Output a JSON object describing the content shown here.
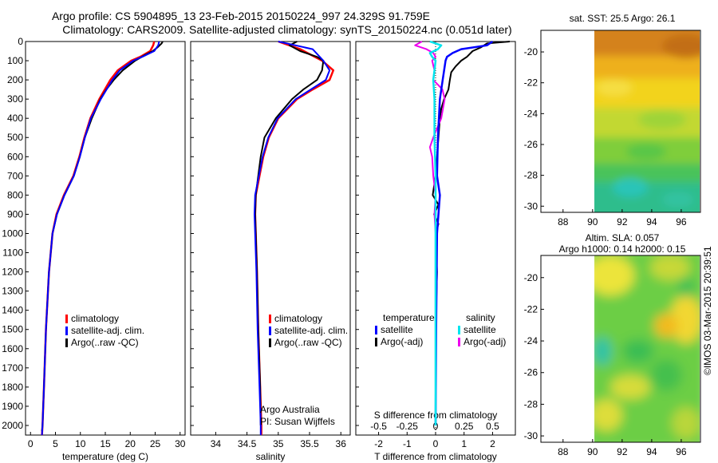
{
  "title_line1": "Argo profile: CS 5904895_13 23-Feb-2015 20150224_997 24.329S 91.759E",
  "title_line2": "Climatology: CARS2009. Satellite-adjusted climatology: synTS_20150224.nc (0.051d later)",
  "credit": "©IMOS 03-Mar-2015 20:39:51",
  "colors": {
    "climatology": "#ff0000",
    "satellite": "#0000ff",
    "argo": "#000000",
    "sal_sat": "#00e5ee",
    "sal_argo": "#ee00ee"
  },
  "chart_data": [
    {
      "type": "line",
      "id": "temperature",
      "xlabel": "temperature (deg C)",
      "ylabel": "depth",
      "xlim": [
        -1,
        31
      ],
      "ylim": [
        2050,
        0
      ],
      "xticks": [
        "0",
        "5",
        "10",
        "15",
        "20",
        "25",
        "30"
      ],
      "yticks": [
        "0",
        "100",
        "200",
        "300",
        "400",
        "500",
        "600",
        "700",
        "800",
        "900",
        "1000",
        "1100",
        "1200",
        "1300",
        "1400",
        "1500",
        "1600",
        "1700",
        "1800",
        "1900",
        "2000"
      ],
      "legend": [
        "climatology",
        "satellite-adj. clim.",
        "Argo(..raw -QC)"
      ],
      "series": [
        {
          "name": "climatology",
          "depth": [
            0,
            20,
            50,
            80,
            100,
            150,
            200,
            300,
            400,
            500,
            600,
            700,
            800,
            900,
            1000,
            1200,
            1500,
            1800,
            2000,
            2050
          ],
          "values": [
            24.8,
            24.6,
            24.0,
            22.0,
            20.2,
            17.5,
            16.0,
            13.8,
            12.0,
            10.8,
            9.8,
            8.6,
            6.7,
            5.2,
            4.4,
            3.7,
            3.1,
            2.7,
            2.4,
            2.3
          ]
        },
        {
          "name": "satellite-adj. clim.",
          "depth": [
            0,
            20,
            50,
            80,
            100,
            150,
            200,
            300,
            400,
            500,
            600,
            700,
            800,
            900,
            1000,
            1200,
            1500,
            1800,
            2000,
            2050
          ],
          "values": [
            25.8,
            25.6,
            24.8,
            22.4,
            20.6,
            17.9,
            16.4,
            14.1,
            12.1,
            10.9,
            9.9,
            8.7,
            6.8,
            5.3,
            4.4,
            3.7,
            3.1,
            2.7,
            2.4,
            2.3
          ]
        },
        {
          "name": "Argo(..raw -QC)",
          "depth": [
            0,
            10,
            30,
            50,
            70,
            100,
            150,
            200,
            250,
            300,
            400,
            500,
            600,
            700,
            800,
            900,
            1000,
            1200,
            1500,
            1800,
            2000,
            2030
          ],
          "values": [
            26.5,
            26.3,
            25.5,
            24.5,
            23.0,
            21.0,
            18.5,
            16.7,
            15.2,
            14.0,
            12.3,
            10.9,
            9.9,
            8.7,
            6.8,
            5.3,
            4.4,
            3.7,
            3.1,
            2.7,
            2.4,
            2.3
          ]
        }
      ]
    },
    {
      "type": "line",
      "id": "salinity",
      "xlabel": "salinity",
      "ylabel": "depth",
      "xlim": [
        33.6,
        36.15
      ],
      "ylim": [
        2050,
        0
      ],
      "xticks": [
        "34",
        "34.5",
        "35",
        "35.5",
        "36"
      ],
      "legend": [
        "climatology",
        "satellite-adj. clim.",
        "Argo(..raw -QC)"
      ],
      "annotation": [
        "Argo Australia",
        "PI: Susan Wijffels"
      ],
      "series": [
        {
          "name": "climatology",
          "depth": [
            0,
            40,
            100,
            150,
            200,
            250,
            300,
            400,
            500,
            600,
            700,
            800,
            900,
            1000,
            1200,
            1500,
            1800,
            2000,
            2050
          ],
          "values": [
            35.0,
            35.35,
            35.7,
            35.88,
            35.82,
            35.55,
            35.3,
            35.0,
            34.85,
            34.76,
            34.7,
            34.64,
            34.63,
            34.64,
            34.66,
            34.68,
            34.71,
            34.73,
            34.73
          ]
        },
        {
          "name": "satellite-adj. clim.",
          "depth": [
            0,
            40,
            100,
            150,
            200,
            250,
            300,
            400,
            500,
            600,
            700,
            800,
            900,
            1000,
            1200,
            1500,
            1800,
            2000,
            2050
          ],
          "values": [
            35.0,
            35.55,
            35.72,
            35.82,
            35.76,
            35.52,
            35.28,
            34.99,
            34.84,
            34.75,
            34.69,
            34.63,
            34.62,
            34.63,
            34.65,
            34.67,
            34.7,
            34.72,
            34.72
          ]
        },
        {
          "name": "Argo(..raw -QC)",
          "depth": [
            0,
            20,
            50,
            80,
            100,
            150,
            200,
            250,
            300,
            400,
            500,
            600,
            700,
            800,
            900,
            1000,
            1200,
            1500,
            1800,
            2000
          ],
          "values": [
            35.3,
            35.18,
            35.35,
            35.62,
            35.72,
            35.7,
            35.62,
            35.4,
            35.22,
            34.96,
            34.78,
            34.72,
            34.68,
            34.64,
            34.63,
            34.64,
            34.66,
            34.68,
            34.71,
            34.72
          ]
        }
      ]
    },
    {
      "type": "line",
      "id": "difference",
      "xlabel": "T difference from climatology",
      "xlabel_top": "S difference from climatology",
      "xlim": [
        -2.8,
        2.8
      ],
      "ylim": [
        2050,
        0
      ],
      "xticks": [
        "-2",
        "-1",
        "0",
        "1",
        "2"
      ],
      "xticks_top": [
        "-0.5",
        "-0.25",
        "0",
        "0.25",
        "0.5"
      ],
      "xlim_top": [
        -0.7,
        0.7
      ],
      "legend_temperature": {
        "heading": "temperature",
        "items": [
          "satellite",
          "Argo(-adj)"
        ]
      },
      "legend_salinity": {
        "heading": "salinity",
        "items": [
          "satellite",
          "Argo(-adj)"
        ]
      },
      "series": [
        {
          "name": "temperature satellite",
          "depth": [
            0,
            20,
            40,
            60,
            80,
            100,
            150,
            200,
            300,
            500,
            700,
            800,
            900,
            1000,
            1500,
            2000
          ],
          "values": [
            2.0,
            1.8,
            0.9,
            0.6,
            0.4,
            0.35,
            0.3,
            0.25,
            0.15,
            0.08,
            0.05,
            0.15,
            0.1,
            0.05,
            0.02,
            0.0
          ]
        },
        {
          "name": "temperature Argo(-adj)",
          "depth": [
            0,
            10,
            30,
            50,
            80,
            100,
            130,
            160,
            200,
            250,
            300,
            350,
            400,
            500,
            600,
            700,
            800,
            850,
            900,
            950,
            1000,
            1200,
            1500,
            2000
          ],
          "values": [
            2.6,
            1.8,
            1.6,
            1.3,
            1.1,
            0.9,
            0.7,
            0.55,
            0.5,
            0.45,
            0.3,
            0.2,
            0.15,
            0.1,
            0.05,
            0.0,
            -0.1,
            0.1,
            -0.05,
            0.1,
            0.0,
            0.05,
            0.0,
            0.0
          ]
        },
        {
          "name": "salinity satellite",
          "depth": [
            0,
            20,
            40,
            60,
            80,
            100,
            150,
            200,
            300,
            500,
            700,
            900,
            1100,
            1500,
            2000
          ],
          "values": [
            -0.05,
            0.05,
            0.02,
            -0.05,
            -0.03,
            0.0,
            -0.01,
            -0.02,
            -0.01,
            -0.01,
            0.0,
            0.0,
            0.0,
            0.0,
            0.0
          ]
        },
        {
          "name": "salinity Argo(-adj)",
          "depth": [
            0,
            20,
            40,
            60,
            80,
            100,
            150,
            200,
            250,
            300,
            400,
            500,
            550,
            600,
            700,
            800,
            900,
            1000,
            1500,
            2000
          ],
          "values": [
            -0.12,
            -0.18,
            -0.08,
            -0.02,
            0.0,
            -0.03,
            -0.01,
            -0.02,
            0.06,
            0.08,
            0.05,
            -0.02,
            -0.05,
            -0.03,
            -0.02,
            0.0,
            -0.01,
            0.0,
            0.0,
            0.0
          ]
        }
      ]
    },
    {
      "type": "heatmap",
      "id": "sst_map",
      "title": "sat. SST: 25.5 Argo: 26.1",
      "xticks": [
        "88",
        "90",
        "92",
        "94",
        "96"
      ],
      "yticks": [
        "-20",
        "-22",
        "-24",
        "-26",
        "-28",
        "-30"
      ],
      "xlim": [
        86.5,
        97.3
      ],
      "ylim": [
        -30.4,
        -18.6
      ]
    },
    {
      "type": "heatmap",
      "id": "sla_map",
      "title": "Altim. SLA: 0.057",
      "subtitle": "Argo h1000: 0.14 h2000: 0.15",
      "xticks": [
        "88",
        "90",
        "92",
        "94",
        "96"
      ],
      "yticks": [
        "-20",
        "-22",
        "-24",
        "-26",
        "-28",
        "-30"
      ],
      "xlim": [
        86.5,
        97.3
      ],
      "ylim": [
        -30.4,
        -18.6
      ]
    }
  ]
}
